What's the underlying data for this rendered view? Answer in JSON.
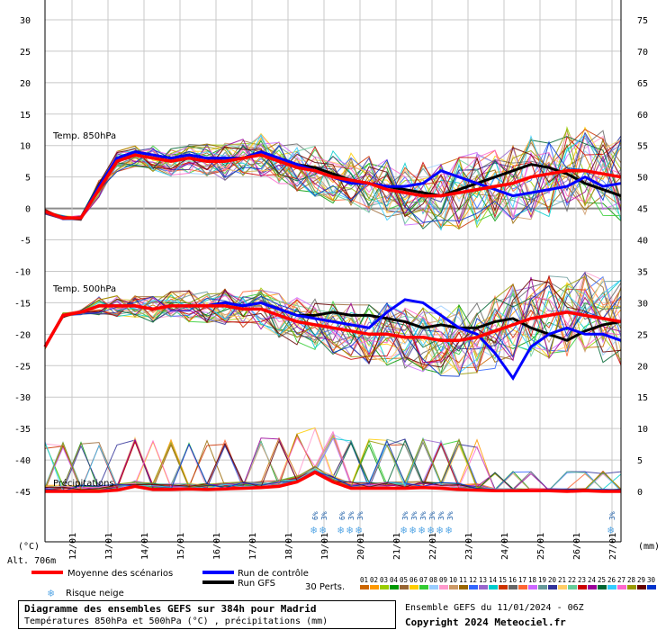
{
  "chart_data": {
    "type": "line",
    "left_axis_unit": "(°C)",
    "right_axis_unit": "(mm)",
    "altitude_label": "Alt. 706m",
    "left_ticks": [
      30,
      25,
      20,
      15,
      10,
      5,
      0,
      -5,
      -10,
      -15,
      -20,
      -25,
      -30,
      -35,
      -40,
      -45
    ],
    "right_ticks": [
      75,
      70,
      65,
      60,
      55,
      50,
      45,
      40,
      35,
      30,
      25,
      20,
      15,
      10,
      5,
      0
    ],
    "ylim_temp": [
      -45,
      30
    ],
    "precip_ylim": [
      0,
      75
    ],
    "x_dates": [
      "12/01",
      "13/01",
      "14/01",
      "15/01",
      "16/01",
      "17/01",
      "18/01",
      "19/01",
      "20/01",
      "21/01",
      "22/01",
      "23/01",
      "24/01",
      "25/01",
      "26/01",
      "27/01"
    ],
    "x_range_h": [
      0,
      384
    ],
    "grid": true,
    "panel_labels": {
      "t850": "Temp. 850hPa",
      "t500": "Temp. 500hPa",
      "precip": "Précipitations"
    },
    "t850": {
      "mean_x": [
        0,
        12,
        24,
        36,
        48,
        60,
        72,
        84,
        96,
        108,
        120,
        132,
        144,
        156,
        168,
        180,
        192,
        204,
        216,
        228,
        240,
        252,
        264,
        276,
        288,
        300,
        312,
        324,
        336,
        348,
        360,
        372,
        384
      ],
      "mean_y": [
        -0.5,
        -1.5,
        -1.5,
        3,
        7.5,
        8.5,
        8,
        7.5,
        8,
        7.5,
        7.5,
        8,
        8.5,
        7.5,
        6.5,
        6,
        5,
        4.5,
        4,
        3,
        2.5,
        2,
        2,
        2.5,
        3,
        3.5,
        4,
        5,
        5.5,
        6,
        6,
        5.5,
        5
      ],
      "control_y": [
        -0.5,
        -1.5,
        -1.5,
        3.5,
        8,
        9,
        8.5,
        8,
        8.5,
        8,
        8,
        8,
        9,
        8,
        7,
        6,
        5,
        4,
        4,
        3.5,
        3.5,
        4,
        6,
        5,
        4,
        3,
        2,
        2.5,
        3,
        3.5,
        5,
        3.5,
        4
      ],
      "gfs_y": [
        -0.5,
        -1.5,
        -1.5,
        3.5,
        8,
        9,
        8.5,
        8,
        8.5,
        8,
        8,
        8,
        9,
        8,
        7,
        6.5,
        5.5,
        4.5,
        4,
        3.5,
        3,
        2.5,
        2,
        3,
        4,
        5,
        6,
        7,
        6.5,
        5.5,
        4,
        3,
        2
      ]
    },
    "t500": {
      "mean_x": [
        0,
        12,
        24,
        36,
        48,
        60,
        72,
        84,
        96,
        108,
        120,
        132,
        144,
        156,
        168,
        180,
        192,
        204,
        216,
        228,
        240,
        252,
        264,
        276,
        288,
        300,
        312,
        324,
        336,
        348,
        360,
        372,
        384
      ],
      "mean_y": [
        -22,
        -17,
        -16.5,
        -15.5,
        -15.5,
        -15.5,
        -16,
        -15.5,
        -15.5,
        -15.5,
        -15.5,
        -16,
        -16,
        -17,
        -18,
        -18.5,
        -19,
        -19.5,
        -20,
        -20,
        -20.5,
        -20.5,
        -21,
        -21,
        -20.5,
        -19.5,
        -18.5,
        -17.5,
        -17,
        -16.5,
        -17,
        -17.5,
        -18
      ],
      "control_y": [
        -22,
        -17,
        -16.5,
        -15.5,
        -15.5,
        -15.5,
        -16,
        -15.5,
        -15.5,
        -15.5,
        -15,
        -15.5,
        -15,
        -16,
        -17,
        -17.5,
        -18,
        -18.5,
        -19,
        -16.5,
        -14.5,
        -15,
        -17,
        -19,
        -20,
        -23,
        -27,
        -22,
        -20,
        -19,
        -20,
        -20,
        -21
      ],
      "gfs_y": [
        -22,
        -17,
        -16.5,
        -15.5,
        -15.5,
        -15.5,
        -16,
        -15.5,
        -15.5,
        -15.5,
        -15,
        -15.5,
        -15,
        -16,
        -17,
        -17,
        -16.5,
        -17,
        -17,
        -17.5,
        -18,
        -19,
        -18.5,
        -19,
        -19,
        -18,
        -17.5,
        -19,
        -20,
        -21,
        -19.5,
        -18.5,
        -18
      ]
    },
    "precip": {
      "mean_x": [
        0,
        12,
        24,
        36,
        48,
        60,
        72,
        84,
        96,
        108,
        120,
        132,
        144,
        156,
        168,
        180,
        192,
        204,
        216,
        228,
        240,
        252,
        264,
        276,
        288,
        300,
        312,
        324,
        336,
        348,
        360,
        372,
        384
      ],
      "mean_mm": [
        0,
        0,
        0,
        0,
        0.2,
        0.8,
        0.3,
        0.3,
        0.4,
        0.3,
        0.4,
        0.5,
        0.6,
        0.8,
        1.5,
        3,
        1.5,
        0.5,
        0.5,
        0.5,
        0.5,
        0.6,
        0.5,
        0.3,
        0.2,
        0.1,
        0.1,
        0.1,
        0.1,
        0,
        0.1,
        0,
        0
      ]
    },
    "snow_risk": [
      {
        "h": 180,
        "pct": "6%"
      },
      {
        "h": 186,
        "pct": "3%"
      },
      {
        "h": 198,
        "pct": "6%"
      },
      {
        "h": 204,
        "pct": "3%"
      },
      {
        "h": 210,
        "pct": "3%"
      },
      {
        "h": 240,
        "pct": "3%"
      },
      {
        "h": 246,
        "pct": "3%"
      },
      {
        "h": 252,
        "pct": "3%"
      },
      {
        "h": 258,
        "pct": "3%"
      },
      {
        "h": 264,
        "pct": "3%"
      },
      {
        "h": 270,
        "pct": "3%"
      },
      {
        "h": 378,
        "pct": "3%"
      }
    ]
  },
  "legend": {
    "mean_label": "Moyenne des scénarios",
    "control_label": "Run de contrôle",
    "gfs_label": "Run GFS",
    "snow_label": "Risque neige",
    "perts_label": "30 Perts.",
    "perts_numbers": [
      "01",
      "02",
      "03",
      "04",
      "05",
      "06",
      "07",
      "08",
      "09",
      "10",
      "11",
      "12",
      "13",
      "14",
      "15",
      "16",
      "17",
      "18",
      "19",
      "20",
      "21",
      "22",
      "23",
      "24",
      "25",
      "26",
      "27",
      "28",
      "29",
      "30"
    ],
    "perts_colors": [
      "#cc6600",
      "#ff9900",
      "#99cc00",
      "#009900",
      "#996633",
      "#ffcc00",
      "#33cc33",
      "#99ccff",
      "#ff99cc",
      "#cc9966",
      "#996600",
      "#3366ff",
      "#9966cc",
      "#00cccc",
      "#cc3300",
      "#666666",
      "#ff6633",
      "#cc66ff",
      "#669999",
      "#333399",
      "#ffcc66",
      "#66cc99",
      "#cc0000",
      "#990099",
      "#006633",
      "#33ccff",
      "#ff66cc",
      "#999900",
      "#660000",
      "#0033cc"
    ],
    "mean_color": "#ff0000",
    "control_color": "#0000ff",
    "gfs_color": "#000000"
  },
  "info": {
    "title": "Diagramme des ensembles GEFS sur 384h pour Madrid",
    "subtitle": "Températures 850hPa et 500hPa (°C) , précipitations (mm)",
    "ensemble": "Ensemble GEFS du 11/01/2024 - 06Z",
    "copyright": "Copyright 2024 Meteociel.fr"
  }
}
